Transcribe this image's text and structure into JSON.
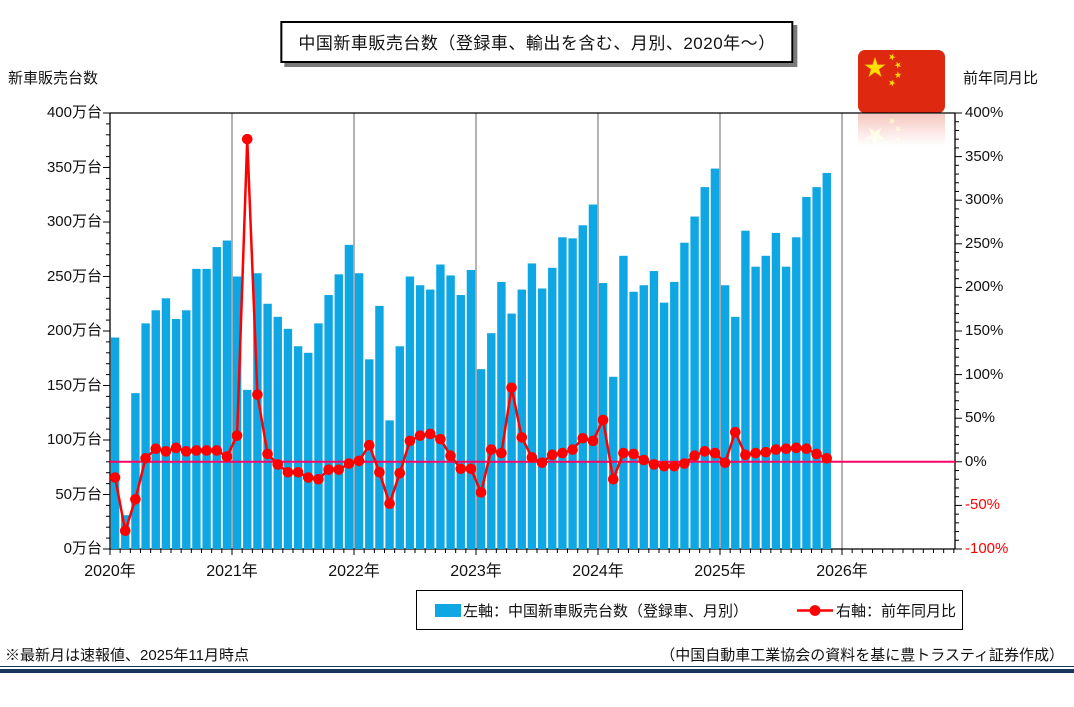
{
  "title": "中国新車販売台数（登録車、輸出を含む、月別、2020年～）",
  "legend": {
    "bars": "左軸：中国新車販売台数（登録車、月別）",
    "line": "右軸：前年同月比"
  },
  "footnote": "※最新月は速報値、2025年11月時点",
  "source": "（中国自動車工業協会の資料を基に豊トラスティ証券作成）",
  "colors": {
    "bar_blue": "#0FA7E3",
    "line_red": "#FF0000",
    "zero_line_magenta": "#FF0066",
    "grid_gray": "#808080",
    "axis_black": "#000000",
    "negative_label_red": "#FF0000",
    "flag_red": "#DE2910",
    "flag_star_yellow": "#FFDE00",
    "rule_navy": "#17375E"
  },
  "chart_data": {
    "type": "bar",
    "subtype": "dual-axis bar + line",
    "title": "中国新車販売台数（登録車、輸出を含む、月別、2020年～）",
    "x_tick_labels": [
      "2020年",
      "2021年",
      "2022年",
      "2023年",
      "2024年",
      "2025年",
      "2026年"
    ],
    "left_axis": {
      "title": "新車販売台数",
      "unit": "万台",
      "range": [
        0,
        400
      ],
      "tick_step": 50,
      "ticks": [
        "400万台",
        "350万台",
        "300万台",
        "250万台",
        "200万台",
        "150万台",
        "100万台",
        "50万台",
        "0万台"
      ]
    },
    "right_axis": {
      "title": "前年同月比",
      "unit": "%",
      "range": [
        -100,
        400
      ],
      "tick_step": 50,
      "ticks": [
        "400%",
        "350%",
        "300%",
        "250%",
        "200%",
        "150%",
        "100%",
        "50%",
        "0%",
        "-50%",
        "-100%"
      ],
      "zero_line": 0
    },
    "grid": "vertical year gridlines",
    "legend_position": "bottom",
    "series": [
      {
        "name": "左軸：中国新車販売台数（登録車、月別）",
        "type": "bar",
        "axis": "left",
        "unit": "万台"
      },
      {
        "name": "右軸：前年同月比",
        "type": "line",
        "axis": "right",
        "unit": "%"
      }
    ],
    "monthly": [
      {
        "year": 2020,
        "sales_10k": [
          194,
          31,
          143,
          207,
          219,
          230,
          211,
          219,
          257,
          257,
          277,
          283
        ],
        "yoy_pct": [
          -18,
          -79,
          -43,
          4,
          15,
          12,
          16,
          12,
          13,
          13,
          13,
          6
        ]
      },
      {
        "year": 2021,
        "sales_10k": [
          250,
          146,
          253,
          225,
          213,
          202,
          186,
          180,
          207,
          233,
          252,
          279
        ],
        "yoy_pct": [
          30,
          370,
          77,
          9,
          -3,
          -12,
          -12,
          -18,
          -20,
          -9,
          -9,
          -2
        ]
      },
      {
        "year": 2022,
        "sales_10k": [
          253,
          174,
          223,
          118,
          186,
          250,
          242,
          238,
          261,
          251,
          233,
          256
        ],
        "yoy_pct": [
          1,
          19,
          -12,
          -48,
          -13,
          24,
          30,
          32,
          26,
          7,
          -8,
          -8
        ]
      },
      {
        "year": 2023,
        "sales_10k": [
          165,
          198,
          245,
          216,
          238,
          262,
          239,
          258,
          286,
          285,
          297,
          316
        ],
        "yoy_pct": [
          -35,
          14,
          10,
          85,
          28,
          5,
          -1,
          8,
          10,
          14,
          27,
          24
        ]
      },
      {
        "year": 2024,
        "sales_10k": [
          244,
          158,
          269,
          236,
          242,
          255,
          226,
          245,
          281,
          305,
          332,
          349
        ],
        "yoy_pct": [
          48,
          -20,
          10,
          9,
          2,
          -3,
          -5,
          -5,
          -2,
          7,
          12,
          10
        ]
      },
      {
        "year": 2025,
        "sales_10k": [
          242,
          213,
          292,
          259,
          269,
          290,
          259,
          286,
          323,
          332,
          345
        ],
        "yoy_pct": [
          -1,
          34,
          8,
          10,
          11,
          14,
          15,
          16,
          15,
          9,
          4
        ]
      }
    ]
  }
}
